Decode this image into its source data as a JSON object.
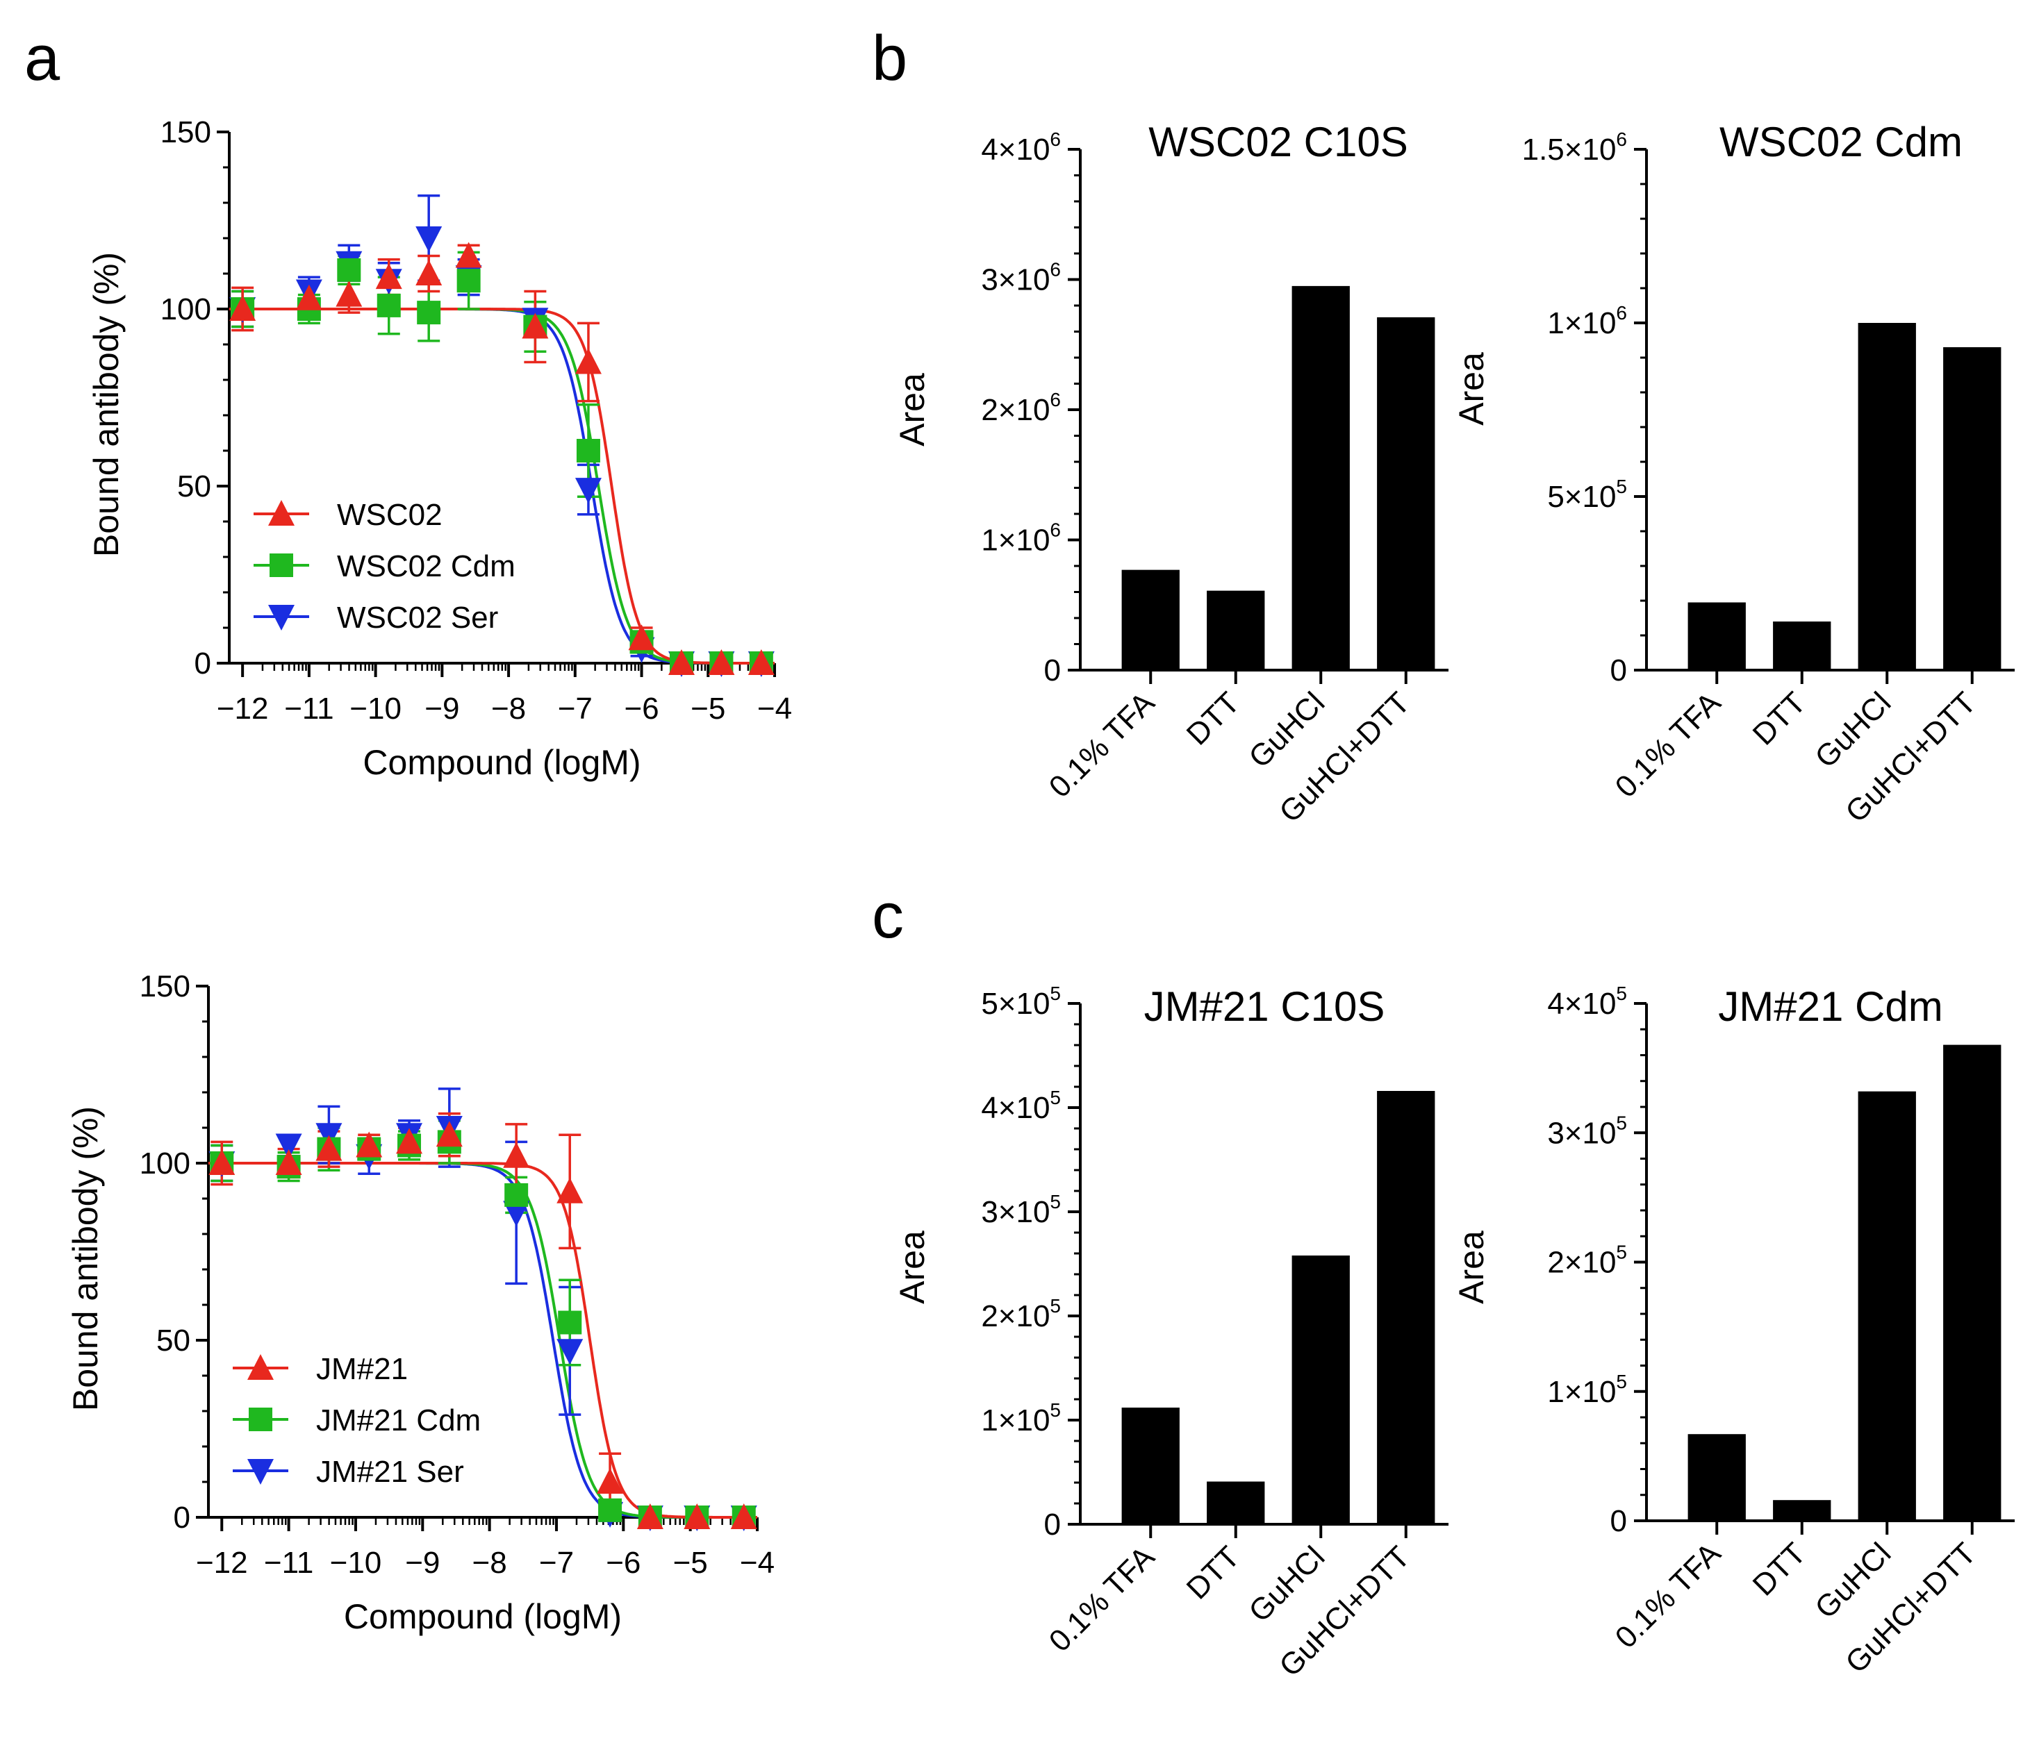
{
  "panel_labels": [
    "a",
    "b",
    "c"
  ],
  "chart_data": [
    {
      "id": "a1",
      "type": "line",
      "title": "",
      "xlabel": "Compound (logM)",
      "ylabel": "Bound antibody  (%)",
      "xlim": [
        -12.2,
        -4
      ],
      "ylim": [
        0,
        150
      ],
      "xticks": [
        -12,
        -11,
        -10,
        -9,
        -8,
        -7,
        -6,
        -5,
        -4
      ],
      "yticks": [
        0,
        50,
        100,
        150
      ],
      "xtick_labels": [
        "−12",
        "−11",
        "−10",
        "−9",
        "−8",
        "−7",
        "−6",
        "−5",
        "−4"
      ],
      "ytick_labels": [
        "0",
        "50",
        "100",
        "150"
      ],
      "legend_position": "bottom-left",
      "series": [
        {
          "name": "WSC02",
          "color": "#e8281e",
          "marker": "triangle-up",
          "ic50": -6.45,
          "hill": 2.2,
          "x": [
            -12,
            -11,
            -10.4,
            -9.8,
            -9.2,
            -8.6,
            -7.6,
            -6.8,
            -6.0,
            -5.4,
            -4.8,
            -4.2
          ],
          "y": [
            100,
            103,
            104,
            109,
            110,
            115,
            95,
            85,
            7,
            0,
            0,
            0
          ],
          "err": [
            6,
            5,
            5,
            5,
            5,
            3,
            10,
            11,
            3,
            1,
            1,
            1
          ]
        },
        {
          "name": "WSC02 Cdm",
          "color": "#1fb81f",
          "marker": "square",
          "ic50": -6.65,
          "hill": 2.0,
          "x": [
            -12,
            -11,
            -10.4,
            -9.8,
            -9.2,
            -8.6,
            -7.6,
            -6.8,
            -6.0,
            -5.4,
            -4.8,
            -4.2
          ],
          "y": [
            100,
            100,
            111,
            101,
            99,
            108,
            95,
            60,
            6,
            0,
            0,
            0
          ],
          "err": [
            5,
            4,
            4,
            8,
            8,
            8,
            7,
            13,
            3,
            1,
            1,
            1
          ]
        },
        {
          "name": "WSC02 Ser",
          "color": "#1a2ee0",
          "marker": "triangle-down",
          "ic50": -6.75,
          "hill": 2.0,
          "x": [
            -12,
            -11,
            -10.4,
            -9.8,
            -9.2,
            -8.6,
            -7.6,
            -6.8,
            -6.0,
            -5.4,
            -4.8,
            -4.2
          ],
          "y": [
            100,
            105,
            113,
            108,
            120,
            109,
            97,
            49,
            4,
            0,
            0,
            0
          ],
          "err": [
            5,
            4,
            5,
            5,
            12,
            5,
            5,
            7,
            2,
            1,
            1,
            1
          ]
        }
      ]
    },
    {
      "id": "a2",
      "type": "line",
      "title": "",
      "xlabel": "Compound (logM)",
      "ylabel": "Bound antibody  (%)",
      "xlim": [
        -12.2,
        -4
      ],
      "ylim": [
        0,
        150
      ],
      "xticks": [
        -12,
        -11,
        -10,
        -9,
        -8,
        -7,
        -6,
        -5,
        -4
      ],
      "yticks": [
        0,
        50,
        100,
        150
      ],
      "xtick_labels": [
        "−12",
        "−11",
        "−10",
        "−9",
        "−8",
        "−7",
        "−6",
        "−5",
        "−4"
      ],
      "ytick_labels": [
        "0",
        "50",
        "100",
        "150"
      ],
      "legend_position": "bottom-left",
      "series": [
        {
          "name": "JM#21",
          "color": "#e8281e",
          "marker": "triangle-up",
          "ic50": -6.5,
          "hill": 2.2,
          "x": [
            -12,
            -11,
            -10.4,
            -9.8,
            -9.2,
            -8.6,
            -7.6,
            -6.8,
            -6.2,
            -5.6,
            -4.9,
            -4.2
          ],
          "y": [
            100,
            100,
            104,
            105,
            106,
            108,
            102,
            92,
            10,
            0,
            0,
            0
          ],
          "err": [
            6,
            4,
            5,
            3,
            4,
            6,
            9,
            16,
            8,
            1,
            1,
            1
          ]
        },
        {
          "name": "JM#21 Cdm",
          "color": "#1fb81f",
          "marker": "square",
          "ic50": -6.95,
          "hill": 2.0,
          "x": [
            -12,
            -11,
            -10.4,
            -9.8,
            -9.2,
            -8.6,
            -7.6,
            -6.8,
            -6.2,
            -5.6,
            -4.9,
            -4.2
          ],
          "y": [
            100,
            99,
            104,
            104,
            105,
            106,
            91,
            55,
            2,
            0,
            0,
            0
          ],
          "err": [
            5,
            4,
            6,
            3,
            4,
            6,
            5,
            12,
            2,
            1,
            1,
            1
          ]
        },
        {
          "name": "JM#21 Ser",
          "color": "#1a2ee0",
          "marker": "triangle-down",
          "ic50": -7.05,
          "hill": 2.0,
          "x": [
            -12,
            -11,
            -10.4,
            -9.8,
            -9.2,
            -8.6,
            -7.6,
            -6.8,
            -6.2,
            -5.6,
            -4.9,
            -4.2
          ],
          "y": [
            100,
            105,
            108,
            102,
            108,
            110,
            86,
            47,
            1,
            0,
            0,
            0
          ],
          "err": [
            5,
            3,
            8,
            5,
            4,
            11,
            20,
            18,
            2,
            1,
            1,
            1
          ]
        }
      ]
    },
    {
      "id": "b1",
      "type": "bar",
      "title": "WSC02 C10S",
      "xlabel": "",
      "ylabel": "Area",
      "categories": [
        "0.1% TFA",
        "DTT",
        "GuHCl",
        "GuHCl+DTT"
      ],
      "values": [
        770000,
        610000,
        2950000,
        2710000
      ],
      "ylim": [
        0,
        4000000
      ],
      "yticks": [
        0,
        1000000,
        2000000,
        3000000,
        4000000
      ],
      "ytick_labels": [
        {
          "base": "0",
          "exp": ""
        },
        {
          "base": "1×10",
          "exp": "6"
        },
        {
          "base": "2×10",
          "exp": "6"
        },
        {
          "base": "3×10",
          "exp": "6"
        },
        {
          "base": "4×10",
          "exp": "6"
        }
      ],
      "bar_color": "#000000"
    },
    {
      "id": "b2",
      "type": "bar",
      "title": "WSC02 Cdm",
      "xlabel": "",
      "ylabel": "Area",
      "categories": [
        "0.1% TFA",
        "DTT",
        "GuHCl",
        "GuHCl+DTT"
      ],
      "values": [
        195000,
        140000,
        1000000,
        930000
      ],
      "ylim": [
        0,
        1500000
      ],
      "yticks": [
        0,
        500000,
        1000000,
        1500000
      ],
      "ytick_labels": [
        {
          "base": "0",
          "exp": ""
        },
        {
          "base": "5×10",
          "exp": "5"
        },
        {
          "base": "1×10",
          "exp": "6"
        },
        {
          "base": "1.5×10",
          "exp": "6"
        }
      ],
      "bar_color": "#000000"
    },
    {
      "id": "c1",
      "type": "bar",
      "title": "JM#21  C10S",
      "xlabel": "",
      "ylabel": "Area",
      "categories": [
        "0.1% TFA",
        "DTT",
        "GuHCl",
        "GuHCl+DTT"
      ],
      "values": [
        112000,
        41000,
        258000,
        416000
      ],
      "ylim": [
        0,
        500000
      ],
      "yticks": [
        0,
        100000,
        200000,
        300000,
        400000,
        500000
      ],
      "ytick_labels": [
        {
          "base": "0",
          "exp": ""
        },
        {
          "base": "1×10",
          "exp": "5"
        },
        {
          "base": "2×10",
          "exp": "5"
        },
        {
          "base": "3×10",
          "exp": "5"
        },
        {
          "base": "4×10",
          "exp": "5"
        },
        {
          "base": "5×10",
          "exp": "5"
        }
      ],
      "bar_color": "#000000"
    },
    {
      "id": "c2",
      "type": "bar",
      "title": "JM#21  Cdm",
      "xlabel": "",
      "ylabel": "Area",
      "categories": [
        "0.1% TFA",
        "DTT",
        "GuHCl",
        "GuHCl+DTT"
      ],
      "values": [
        67000,
        16000,
        332000,
        368000
      ],
      "ylim": [
        0,
        400000
      ],
      "yticks": [
        0,
        100000,
        200000,
        300000,
        400000
      ],
      "ytick_labels": [
        {
          "base": "0",
          "exp": ""
        },
        {
          "base": "1×10",
          "exp": "5"
        },
        {
          "base": "2×10",
          "exp": "5"
        },
        {
          "base": "3×10",
          "exp": "5"
        },
        {
          "base": "4×10",
          "exp": "5"
        }
      ],
      "bar_color": "#000000"
    }
  ]
}
